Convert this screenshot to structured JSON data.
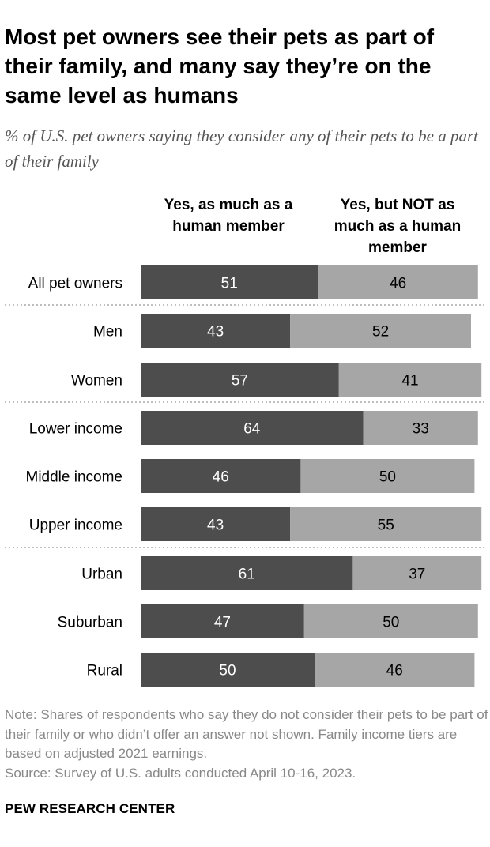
{
  "title": "Most pet owners see their pets as part of their family, and many say they’re on the same level as humans",
  "subtitle": "% of U.S. pet owners saying they consider any of their pets to be a part of their family",
  "colors": {
    "dark": "#4d4d4d",
    "light": "#a6a6a6",
    "divider": "#aaaaaa"
  },
  "chart_data": {
    "type": "bar",
    "orientation": "horizontal",
    "stacked": true,
    "categories": [
      "All pet owners",
      "Men",
      "Women",
      "Lower income",
      "Middle income",
      "Upper income",
      "Urban",
      "Suburban",
      "Rural"
    ],
    "series": [
      {
        "name": "Yes, as much as a human member",
        "values": [
          51,
          43,
          57,
          64,
          46,
          43,
          61,
          47,
          50
        ]
      },
      {
        "name": "Yes, but NOT as much as a human member",
        "values": [
          46,
          52,
          41,
          33,
          50,
          55,
          37,
          50,
          46
        ]
      }
    ],
    "xlim": [
      0,
      100
    ],
    "grid": false,
    "legend": "top"
  },
  "footer": {
    "note": "Note: Shares of respondents who say they do not consider their pets to be part of their family or who didn’t offer an answer not shown. Family income tiers are based on adjusted 2021 earnings.",
    "source": "Source: Survey of U.S. adults conducted April 10-16, 2023.",
    "brand": "PEW RESEARCH CENTER"
  }
}
